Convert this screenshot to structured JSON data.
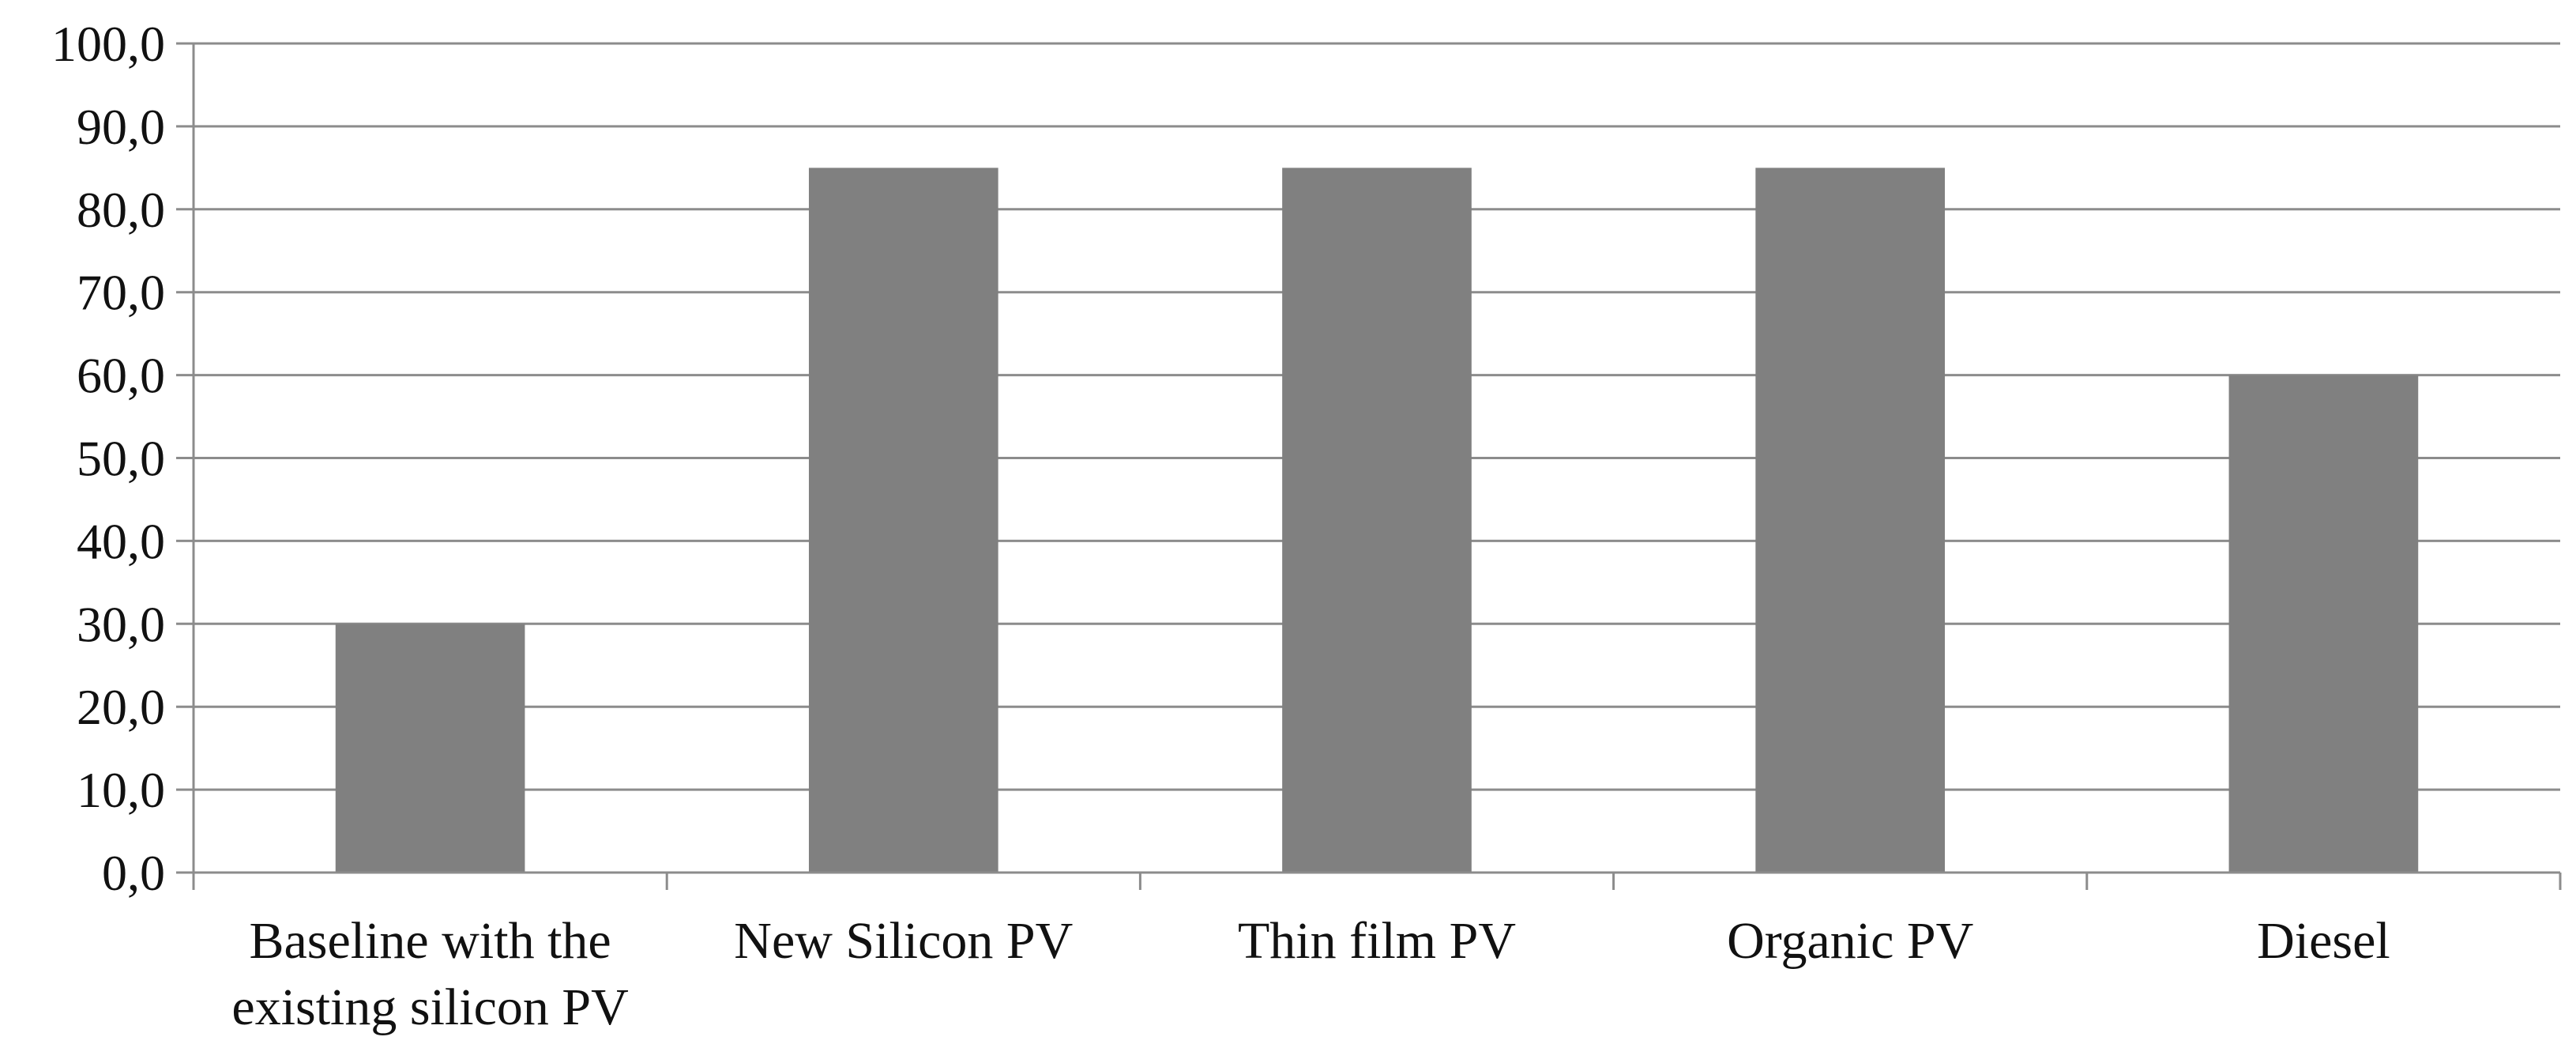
{
  "chart_data": {
    "type": "bar",
    "categories": [
      [
        "Baseline with the",
        "existing silicon PV"
      ],
      [
        "New Silicon PV"
      ],
      [
        "Thin film PV"
      ],
      [
        "Organic PV"
      ],
      [
        "Diesel"
      ]
    ],
    "values": [
      30,
      85,
      85,
      85,
      60
    ],
    "ylim": [
      0,
      100
    ],
    "yticks": [
      "0,0",
      "10,0",
      "20,0",
      "30,0",
      "40,0",
      "50,0",
      "60,0",
      "70,0",
      "80,0",
      "90,0",
      "100,0"
    ],
    "grid": true,
    "legend": "none",
    "colors": {
      "bar": "#808080",
      "grid": "#8c8c8c",
      "axis": "#8c8c8c",
      "text": "#111111"
    }
  }
}
